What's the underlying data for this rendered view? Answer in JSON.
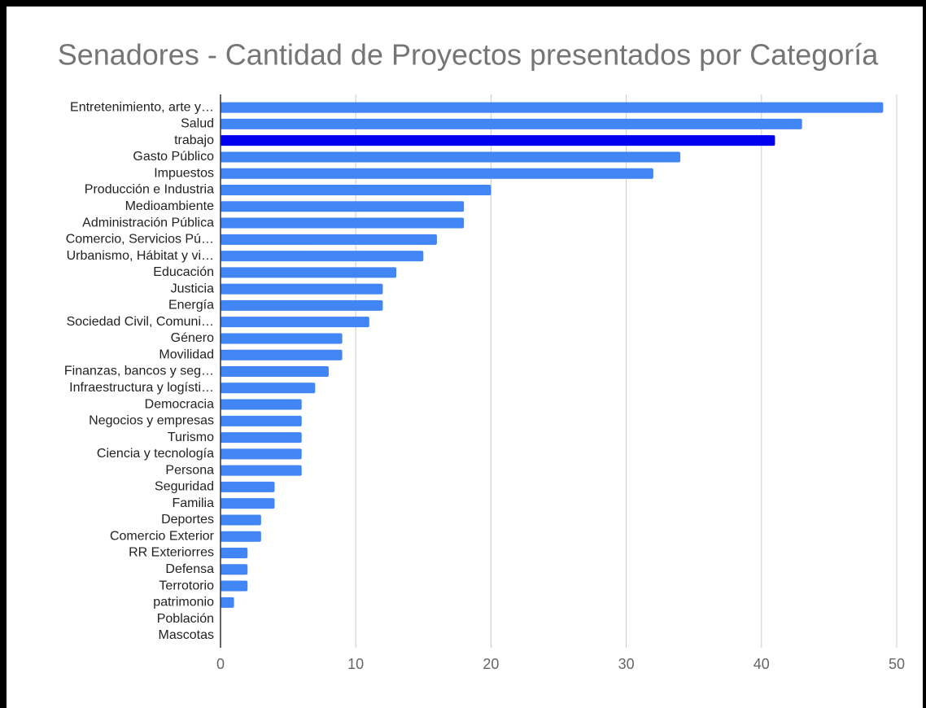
{
  "chart_data": {
    "type": "hbar",
    "title": "Senadores - Cantidad de Proyectos presentados por Categoría",
    "categories": [
      "Entretenimiento, arte y…",
      "Salud",
      "trabajo",
      "Gasto Público",
      "Impuestos",
      "Producción e Industria",
      "Medioambiente",
      "Administración Pública",
      "Comercio, Servicios Pú…",
      "Urbanismo, Hábitat y vi…",
      "Educación",
      "Justicia",
      "Energía",
      "Sociedad Civil, Comuni…",
      "Género",
      "Movilidad",
      "Finanzas, bancos y seg…",
      "Infraestructura y logísti…",
      "Democracia",
      "Negocios y empresas",
      "Turismo",
      "Ciencia y tecnología",
      "Persona",
      "Seguridad",
      "Familia",
      "Deportes",
      "Comercio Exterior",
      "RR Exteriorres",
      "Defensa",
      "Terrotorio",
      "patrimonio",
      "Población",
      "Mascotas"
    ],
    "values": [
      49,
      43,
      41,
      34,
      32,
      20,
      18,
      18,
      16,
      15,
      13,
      12,
      12,
      11,
      9,
      9,
      8,
      7,
      6,
      6,
      6,
      6,
      6,
      4,
      4,
      3,
      3,
      2,
      2,
      2,
      1,
      0,
      0
    ],
    "colors": [
      "#4285f4",
      "#4285f4",
      "#0000ee",
      "#4285f4",
      "#4285f4",
      "#4285f4",
      "#4285f4",
      "#4285f4",
      "#4285f4",
      "#4285f4",
      "#4285f4",
      "#4285f4",
      "#4285f4",
      "#4285f4",
      "#4285f4",
      "#4285f4",
      "#4285f4",
      "#4285f4",
      "#4285f4",
      "#4285f4",
      "#4285f4",
      "#4285f4",
      "#4285f4",
      "#4285f4",
      "#4285f4",
      "#4285f4",
      "#4285f4",
      "#4285f4",
      "#4285f4",
      "#4285f4",
      "#4285f4",
      "#4285f4",
      "#4285f4"
    ],
    "xlim": [
      0,
      50
    ],
    "xticks": [
      0,
      10,
      20,
      30,
      40,
      50
    ],
    "grid": true
  }
}
